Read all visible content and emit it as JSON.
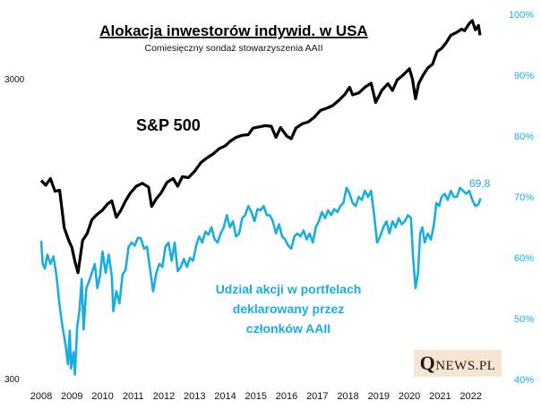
{
  "chart_data": {
    "type": "line",
    "title": "Alokacja inwestorów indywid. w USA",
    "subtitle": "Comiesięczny sondaż stowarzyszenia AAII",
    "x_range": [
      2008,
      2022.8
    ],
    "x_ticks": [
      "2008",
      "2009",
      "2010",
      "2011",
      "2012",
      "2013",
      "2014",
      "2015",
      "2016",
      "2017",
      "2018",
      "2019",
      "2020",
      "2021",
      "2022"
    ],
    "y_left": {
      "scale": "log",
      "range": [
        300,
        5000
      ],
      "ticks": [
        "300",
        "3000"
      ]
    },
    "y_right": {
      "range": [
        40,
        100
      ],
      "ticks": [
        "40%",
        "50%",
        "60%",
        "70%",
        "80%",
        "90%",
        "100%"
      ]
    },
    "annotations": {
      "last_value": "69,8"
    },
    "colors": {
      "sp500": "#000000",
      "allocation": "#1aaee0"
    },
    "series": [
      {
        "name": "S&P 500",
        "axis": "left",
        "points": [
          [
            2008.0,
            1380
          ],
          [
            2008.15,
            1330
          ],
          [
            2008.3,
            1400
          ],
          [
            2008.45,
            1270
          ],
          [
            2008.6,
            1280
          ],
          [
            2008.75,
            960
          ],
          [
            2008.9,
            870
          ],
          [
            2009.0,
            825
          ],
          [
            2009.1,
            740
          ],
          [
            2009.2,
            680
          ],
          [
            2009.35,
            870
          ],
          [
            2009.5,
            920
          ],
          [
            2009.65,
            1020
          ],
          [
            2009.8,
            1060
          ],
          [
            2010.0,
            1100
          ],
          [
            2010.15,
            1150
          ],
          [
            2010.3,
            1180
          ],
          [
            2010.45,
            1040
          ],
          [
            2010.6,
            1100
          ],
          [
            2010.75,
            1180
          ],
          [
            2010.9,
            1250
          ],
          [
            2011.1,
            1320
          ],
          [
            2011.3,
            1350
          ],
          [
            2011.5,
            1310
          ],
          [
            2011.6,
            1130
          ],
          [
            2011.75,
            1200
          ],
          [
            2011.9,
            1250
          ],
          [
            2012.1,
            1360
          ],
          [
            2012.3,
            1400
          ],
          [
            2012.45,
            1320
          ],
          [
            2012.6,
            1420
          ],
          [
            2012.8,
            1410
          ],
          [
            2013.0,
            1480
          ],
          [
            2013.2,
            1580
          ],
          [
            2013.4,
            1640
          ],
          [
            2013.6,
            1690
          ],
          [
            2013.8,
            1760
          ],
          [
            2014.0,
            1800
          ],
          [
            2014.15,
            1860
          ],
          [
            2014.35,
            1920
          ],
          [
            2014.55,
            1950
          ],
          [
            2014.75,
            1960
          ],
          [
            2014.9,
            2060
          ],
          [
            2015.1,
            2080
          ],
          [
            2015.3,
            2100
          ],
          [
            2015.5,
            2090
          ],
          [
            2015.65,
            1920
          ],
          [
            2015.8,
            2070
          ],
          [
            2016.0,
            1940
          ],
          [
            2016.15,
            1900
          ],
          [
            2016.3,
            2060
          ],
          [
            2016.5,
            2130
          ],
          [
            2016.7,
            2160
          ],
          [
            2016.9,
            2240
          ],
          [
            2017.1,
            2360
          ],
          [
            2017.3,
            2400
          ],
          [
            2017.5,
            2450
          ],
          [
            2017.7,
            2550
          ],
          [
            2017.9,
            2670
          ],
          [
            2018.05,
            2820
          ],
          [
            2018.15,
            2660
          ],
          [
            2018.35,
            2700
          ],
          [
            2018.55,
            2820
          ],
          [
            2018.75,
            2910
          ],
          [
            2018.9,
            2510
          ],
          [
            2019.1,
            2750
          ],
          [
            2019.3,
            2900
          ],
          [
            2019.45,
            2750
          ],
          [
            2019.6,
            2980
          ],
          [
            2019.8,
            3100
          ],
          [
            2020.0,
            3250
          ],
          [
            2020.1,
            3000
          ],
          [
            2020.2,
            2580
          ],
          [
            2020.3,
            2900
          ],
          [
            2020.45,
            3100
          ],
          [
            2020.6,
            3270
          ],
          [
            2020.75,
            3360
          ],
          [
            2020.9,
            3700
          ],
          [
            2021.05,
            3800
          ],
          [
            2021.2,
            3970
          ],
          [
            2021.35,
            4200
          ],
          [
            2021.55,
            4300
          ],
          [
            2021.7,
            4400
          ],
          [
            2021.8,
            4350
          ],
          [
            2021.95,
            4600
          ],
          [
            2022.05,
            4700
          ],
          [
            2022.15,
            4380
          ],
          [
            2022.25,
            4530
          ],
          [
            2022.3,
            4200
          ]
        ]
      },
      {
        "name": "Udział akcji w portfelach deklarowany przez członków AAII",
        "axis": "right",
        "points": [
          [
            2008.0,
            62.8
          ],
          [
            2008.05,
            59.0
          ],
          [
            2008.12,
            58.2
          ],
          [
            2008.2,
            60.5
          ],
          [
            2008.3,
            59.0
          ],
          [
            2008.4,
            60.2
          ],
          [
            2008.5,
            57.0
          ],
          [
            2008.6,
            52.0
          ],
          [
            2008.7,
            48.5
          ],
          [
            2008.8,
            45.5
          ],
          [
            2008.87,
            42.5
          ],
          [
            2008.93,
            48.0
          ],
          [
            2008.97,
            41.8
          ],
          [
            2009.05,
            44.5
          ],
          [
            2009.1,
            40.8
          ],
          [
            2009.17,
            48.5
          ],
          [
            2009.25,
            51.5
          ],
          [
            2009.32,
            56.5
          ],
          [
            2009.38,
            48.2
          ],
          [
            2009.47,
            55.0
          ],
          [
            2009.55,
            56.0
          ],
          [
            2009.65,
            57.5
          ],
          [
            2009.75,
            59.0
          ],
          [
            2009.83,
            55.0
          ],
          [
            2009.92,
            57.2
          ],
          [
            2010.0,
            61.0
          ],
          [
            2010.1,
            57.5
          ],
          [
            2010.2,
            60.5
          ],
          [
            2010.3,
            57.0
          ],
          [
            2010.35,
            51.2
          ],
          [
            2010.45,
            54.5
          ],
          [
            2010.55,
            52.5
          ],
          [
            2010.65,
            57.2
          ],
          [
            2010.75,
            58.0
          ],
          [
            2010.85,
            61.8
          ],
          [
            2010.95,
            62.5
          ],
          [
            2011.05,
            62.0
          ],
          [
            2011.15,
            63.3
          ],
          [
            2011.25,
            63.2
          ],
          [
            2011.35,
            61.5
          ],
          [
            2011.45,
            61.8
          ],
          [
            2011.55,
            58.0
          ],
          [
            2011.65,
            54.5
          ],
          [
            2011.75,
            57.5
          ],
          [
            2011.85,
            59.0
          ],
          [
            2011.95,
            58.5
          ],
          [
            2012.05,
            61.8
          ],
          [
            2012.15,
            62.5
          ],
          [
            2012.25,
            59.5
          ],
          [
            2012.35,
            62.5
          ],
          [
            2012.45,
            57.8
          ],
          [
            2012.55,
            58.5
          ],
          [
            2012.65,
            59.8
          ],
          [
            2012.75,
            58.5
          ],
          [
            2012.85,
            60.0
          ],
          [
            2012.95,
            59.5
          ],
          [
            2013.05,
            62.0
          ],
          [
            2013.15,
            63.5
          ],
          [
            2013.25,
            62.5
          ],
          [
            2013.35,
            64.3
          ],
          [
            2013.45,
            63.8
          ],
          [
            2013.55,
            65.0
          ],
          [
            2013.65,
            63.0
          ],
          [
            2013.75,
            62.5
          ],
          [
            2013.85,
            64.0
          ],
          [
            2013.95,
            65.0
          ],
          [
            2014.05,
            67.0
          ],
          [
            2014.15,
            65.0
          ],
          [
            2014.25,
            66.0
          ],
          [
            2014.35,
            63.5
          ],
          [
            2014.45,
            64.0
          ],
          [
            2014.55,
            66.5
          ],
          [
            2014.65,
            67.0
          ],
          [
            2014.75,
            68.5
          ],
          [
            2014.85,
            67.5
          ],
          [
            2014.95,
            66.0
          ],
          [
            2015.05,
            68.0
          ],
          [
            2015.15,
            67.8
          ],
          [
            2015.25,
            68.5
          ],
          [
            2015.35,
            67.0
          ],
          [
            2015.45,
            67.0
          ],
          [
            2015.55,
            66.0
          ],
          [
            2015.65,
            64.0
          ],
          [
            2015.75,
            65.5
          ],
          [
            2015.85,
            63.5
          ],
          [
            2015.95,
            63.0
          ],
          [
            2016.05,
            62.0
          ],
          [
            2016.15,
            61.5
          ],
          [
            2016.25,
            63.5
          ],
          [
            2016.35,
            64.0
          ],
          [
            2016.45,
            63.5
          ],
          [
            2016.55,
            64.5
          ],
          [
            2016.65,
            63.0
          ],
          [
            2016.75,
            64.0
          ],
          [
            2016.85,
            62.5
          ],
          [
            2016.95,
            65.0
          ],
          [
            2017.05,
            66.0
          ],
          [
            2017.15,
            67.5
          ],
          [
            2017.25,
            66.5
          ],
          [
            2017.35,
            67.8
          ],
          [
            2017.45,
            67.0
          ],
          [
            2017.55,
            68.0
          ],
          [
            2017.65,
            67.5
          ],
          [
            2017.75,
            68.5
          ],
          [
            2017.85,
            69.0
          ],
          [
            2017.95,
            71.5
          ],
          [
            2018.05,
            70.5
          ],
          [
            2018.15,
            69.0
          ],
          [
            2018.25,
            68.5
          ],
          [
            2018.35,
            70.0
          ],
          [
            2018.45,
            69.5
          ],
          [
            2018.55,
            71.0
          ],
          [
            2018.65,
            70.0
          ],
          [
            2018.75,
            71.0
          ],
          [
            2018.85,
            67.0
          ],
          [
            2018.95,
            62.5
          ],
          [
            2019.05,
            63.5
          ],
          [
            2019.15,
            65.0
          ],
          [
            2019.25,
            66.0
          ],
          [
            2019.35,
            64.0
          ],
          [
            2019.45,
            66.0
          ],
          [
            2019.55,
            65.0
          ],
          [
            2019.65,
            66.5
          ],
          [
            2019.75,
            65.5
          ],
          [
            2019.85,
            66.0
          ],
          [
            2019.95,
            67.0
          ],
          [
            2020.05,
            66.5
          ],
          [
            2020.12,
            60.0
          ],
          [
            2020.2,
            55.0
          ],
          [
            2020.28,
            57.5
          ],
          [
            2020.35,
            64.0
          ],
          [
            2020.42,
            65.0
          ],
          [
            2020.5,
            62.5
          ],
          [
            2020.6,
            64.0
          ],
          [
            2020.7,
            63.0
          ],
          [
            2020.8,
            65.5
          ],
          [
            2020.88,
            69.0
          ],
          [
            2020.97,
            68.5
          ],
          [
            2021.05,
            70.0
          ],
          [
            2021.15,
            70.5
          ],
          [
            2021.25,
            69.5
          ],
          [
            2021.35,
            71.0
          ],
          [
            2021.45,
            70.0
          ],
          [
            2021.55,
            70.0
          ],
          [
            2021.65,
            71.5
          ],
          [
            2021.75,
            71.0
          ],
          [
            2021.85,
            70.5
          ],
          [
            2021.95,
            71.0
          ],
          [
            2022.05,
            69.5
          ],
          [
            2022.15,
            68.5
          ],
          [
            2022.25,
            68.8
          ],
          [
            2022.32,
            69.8
          ]
        ]
      }
    ]
  }
}
